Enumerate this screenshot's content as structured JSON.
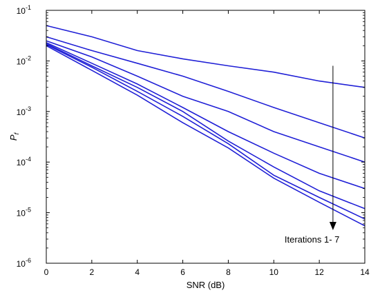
{
  "chart_data": {
    "type": "line",
    "xlabel": "SNR (dB)",
    "ylabel": "P_f",
    "ylabel_main": "P",
    "ylabel_sub": "f",
    "xlim": [
      0,
      14
    ],
    "ylim": [
      1e-06,
      0.1
    ],
    "yscale": "log",
    "grid": false,
    "x_ticks": [
      "0",
      "2",
      "4",
      "6",
      "8",
      "10",
      "12",
      "14"
    ],
    "y_ticks": [
      {
        "base": "10",
        "exp": "-6"
      },
      {
        "base": "10",
        "exp": "-5"
      },
      {
        "base": "10",
        "exp": "-4"
      },
      {
        "base": "10",
        "exp": "-3"
      },
      {
        "base": "10",
        "exp": "-2"
      },
      {
        "base": "10",
        "exp": "-1"
      }
    ],
    "line_color": "#1f1fd6",
    "x": [
      0,
      2,
      4,
      6,
      8,
      10,
      12,
      14
    ],
    "series": [
      {
        "values": [
          0.05,
          0.03,
          0.016,
          0.011,
          0.008,
          0.006,
          0.004,
          0.003
        ]
      },
      {
        "values": [
          0.03,
          0.016,
          0.009,
          0.005,
          0.0025,
          0.0012,
          0.0006,
          0.0003
        ]
      },
      {
        "values": [
          0.025,
          0.012,
          0.005,
          0.002,
          0.001,
          0.0004,
          0.0002,
          0.0001
        ]
      },
      {
        "values": [
          0.023,
          0.009,
          0.0035,
          0.0012,
          0.0004,
          0.00015,
          6e-05,
          3e-05
        ]
      },
      {
        "values": [
          0.022,
          0.008,
          0.003,
          0.001,
          0.00026,
          8e-05,
          2.7e-05,
          1.2e-05
        ]
      },
      {
        "values": [
          0.021,
          0.0075,
          0.0025,
          0.0008,
          0.00023,
          5.5e-05,
          2e-05,
          7.5e-06
        ]
      },
      {
        "values": [
          0.02,
          0.0065,
          0.0021,
          0.0006,
          0.00019,
          4.8e-05,
          1.6e-05,
          5.5e-06
        ]
      }
    ],
    "annotation": {
      "text": "Iterations 1- 7",
      "arrow_x": 12.6,
      "arrow_from": 0.008,
      "arrow_to": 4.5e-06
    }
  }
}
